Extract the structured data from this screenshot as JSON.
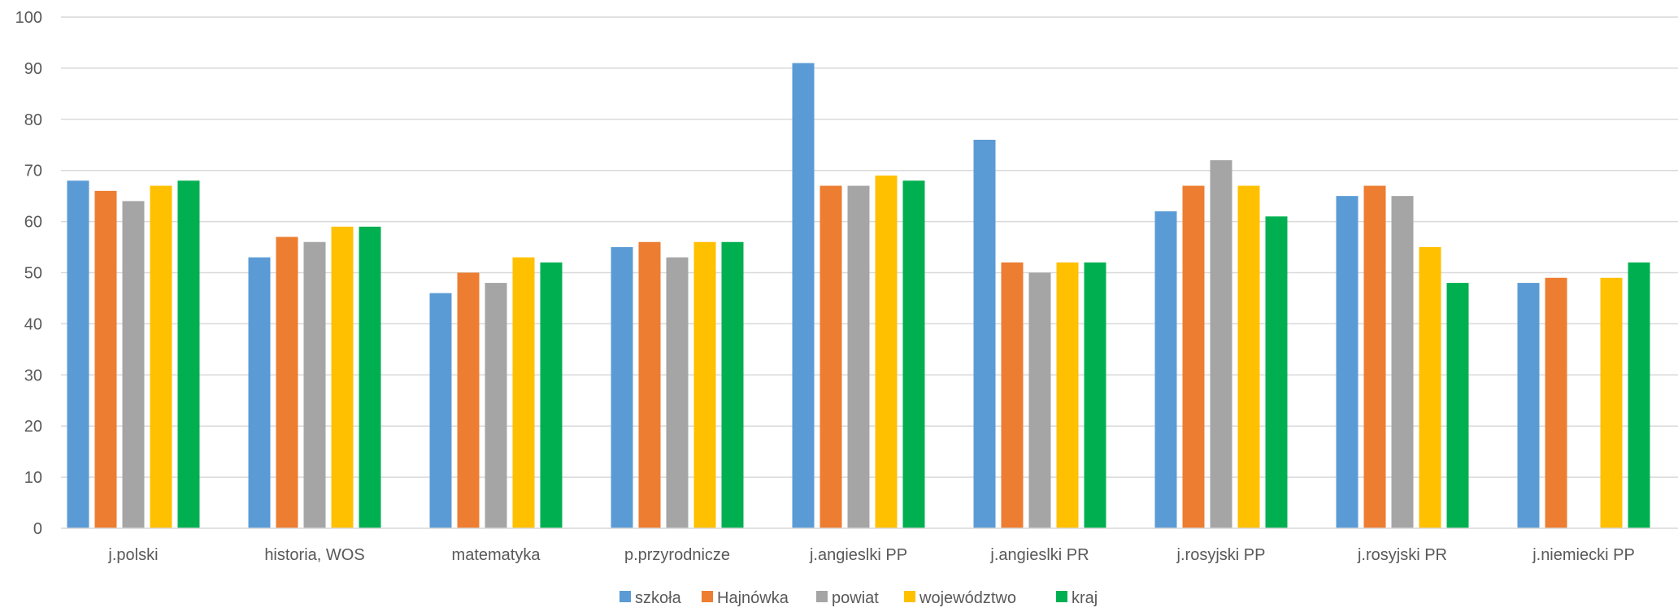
{
  "chart_data": {
    "type": "bar",
    "title": "",
    "xlabel": "",
    "ylabel": "",
    "ylim": [
      0,
      100
    ],
    "yticks": [
      0,
      10,
      20,
      30,
      40,
      50,
      60,
      70,
      80,
      90,
      100
    ],
    "grid": true,
    "legend_position": "bottom",
    "categories": [
      "j.polski",
      "historia, WOS",
      "matematyka",
      "p.przyrodnicze",
      "j.angieslki PP",
      "j.angieslki PR",
      "j.rosyjski PP",
      "j.rosyjski PR",
      "j.niemiecki PP"
    ],
    "series": [
      {
        "name": "szkoła",
        "color": "#5B9BD5",
        "values": [
          68,
          53,
          46,
          55,
          91,
          76,
          62,
          65,
          48
        ]
      },
      {
        "name": "Hajnówka",
        "color": "#ED7D31",
        "values": [
          66,
          57,
          50,
          56,
          67,
          52,
          67,
          67,
          49
        ]
      },
      {
        "name": "powiat",
        "color": "#A5A5A5",
        "values": [
          64,
          56,
          48,
          53,
          67,
          50,
          72,
          65,
          null
        ]
      },
      {
        "name": "województwo",
        "color": "#FFC000",
        "values": [
          67,
          59,
          53,
          56,
          69,
          52,
          67,
          55,
          49
        ]
      },
      {
        "name": "kraj",
        "color": "#00B050",
        "values": [
          68,
          59,
          52,
          56,
          68,
          52,
          61,
          48,
          52
        ]
      }
    ]
  }
}
